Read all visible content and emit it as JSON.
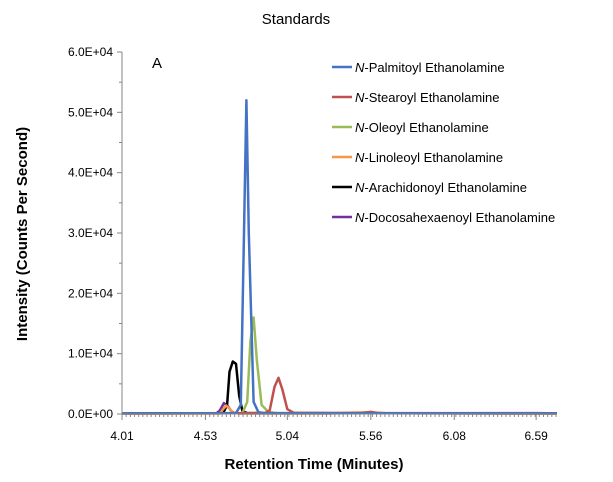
{
  "chart_data": {
    "type": "line",
    "title": "Standards",
    "panel_label": "A",
    "xlabel": "Retention Time (Minutes)",
    "ylabel": "Intensity (Counts Per Second)",
    "xlim": [
      4.01,
      6.72
    ],
    "ylim": [
      0,
      60000
    ],
    "x_ticks": [
      4.01,
      4.53,
      5.04,
      5.56,
      6.08,
      6.59
    ],
    "x_tick_labels": [
      "4.01",
      "4.53",
      "5.04",
      "5.56",
      "6.08",
      "6.59"
    ],
    "y_ticks": [
      0,
      10000,
      20000,
      30000,
      40000,
      50000,
      60000
    ],
    "y_tick_labels": [
      "0.0E+00",
      "1.0E+04",
      "2.0E+04",
      "3.0E+04",
      "4.0E+04",
      "5.0E+04",
      "6.0E+04"
    ],
    "grid": false,
    "legend_position": "top-right",
    "series": [
      {
        "name_prefix": "N",
        "name": "-Palmitoyl Ethanolamine",
        "color": "#4472C4",
        "x": [
          4.01,
          4.72,
          4.75,
          4.77,
          4.785,
          4.8,
          4.83,
          4.86,
          4.9,
          6.72
        ],
        "y": [
          100,
          150,
          1500,
          30000,
          52000,
          30000,
          2000,
          300,
          150,
          100
        ]
      },
      {
        "name_prefix": "N",
        "name": "-Stearoyl Ethanolamine",
        "color": "#C0504D",
        "x": [
          4.01,
          4.9,
          4.93,
          4.96,
          4.985,
          5.01,
          5.04,
          5.08,
          5.5,
          5.56,
          5.6,
          6.72
        ],
        "y": [
          100,
          150,
          600,
          4500,
          6000,
          4000,
          800,
          200,
          150,
          350,
          150,
          100
        ]
      },
      {
        "name_prefix": "N",
        "name": "-Oleoyl Ethanolamine",
        "color": "#9BBB59",
        "x": [
          4.01,
          4.76,
          4.79,
          4.81,
          4.83,
          4.85,
          4.88,
          4.92,
          4.97,
          6.72
        ],
        "y": [
          100,
          150,
          2000,
          12000,
          16000,
          9000,
          1500,
          400,
          150,
          100
        ]
      },
      {
        "name_prefix": "N",
        "name": "-Linoleoyl Ethanolamine",
        "color": "#F79646",
        "x": [
          4.01,
          4.62,
          4.64,
          4.66,
          4.68,
          4.7,
          4.74,
          5.3,
          5.4,
          5.56,
          5.65,
          6.72
        ],
        "y": [
          50,
          60,
          800,
          1400,
          900,
          200,
          80,
          60,
          200,
          300,
          150,
          60
        ]
      },
      {
        "name_prefix": "N",
        "name": "-Arachidonoyl Ethanolamine",
        "color": "#000000",
        "x": [
          4.01,
          4.64,
          4.665,
          4.68,
          4.7,
          4.72,
          4.74,
          4.76,
          4.79,
          6.72
        ],
        "y": [
          100,
          150,
          1500,
          7000,
          8700,
          8300,
          3000,
          500,
          150,
          100
        ]
      },
      {
        "name_prefix": "N",
        "name": "-Docosahexaenoyl Ethanolamine",
        "color": "#7030A0",
        "x": [
          4.01,
          4.6,
          4.62,
          4.645,
          4.67,
          4.69,
          4.71,
          4.74,
          6.6,
          6.72
        ],
        "y": [
          100,
          150,
          600,
          1800,
          1300,
          500,
          150,
          100,
          150,
          100
        ]
      }
    ]
  }
}
